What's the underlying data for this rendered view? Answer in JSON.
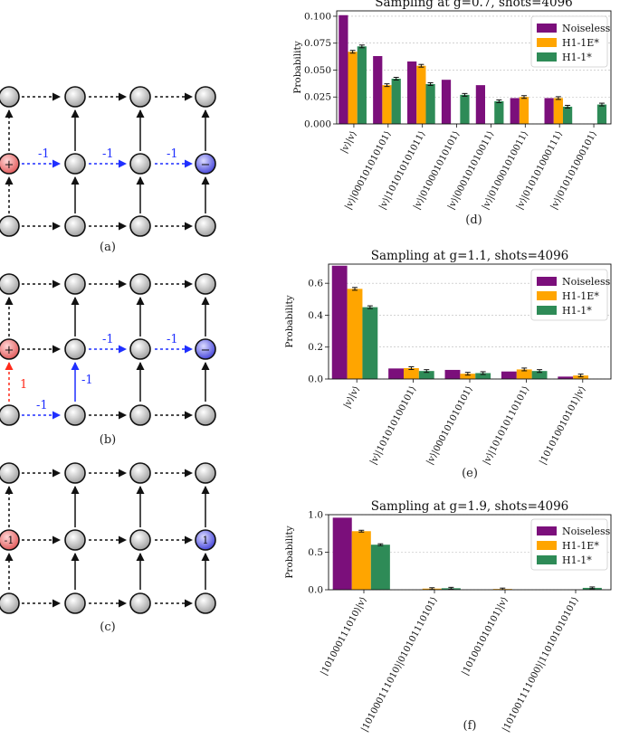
{
  "colors": {
    "noiseless": "#7b0f7b",
    "h1_1e": "#ffa500",
    "h1_1": "#2e8b57",
    "blue_link": "#1f2fff",
    "red_link": "#ff2a1a"
  },
  "diagrams": [
    {
      "caption": "(a)",
      "plus_label": "+",
      "minus_label": "−",
      "link_labels": [
        "-1",
        "-1",
        "-1"
      ]
    },
    {
      "caption": "(b)",
      "plus_label": "+",
      "minus_label": "−",
      "link_labels": [
        "-1",
        "-1",
        "-1",
        "-1",
        "1"
      ]
    },
    {
      "caption": "(c)",
      "left_label": "-1",
      "right_label": "1"
    }
  ],
  "legend": [
    "Noiseless",
    "H1-1E*",
    "H1-1*"
  ],
  "chart_data": [
    {
      "type": "bar",
      "caption": "(d)",
      "title": "Sampling at g=0.7, shots=4096",
      "ylabel": "Probability",
      "ylim": [
        0,
        0.105
      ],
      "yticks": [
        "0.000",
        "0.025",
        "0.050",
        "0.075",
        "0.100"
      ],
      "ytick_values": [
        0,
        0.025,
        0.05,
        0.075,
        0.1
      ],
      "categories": [
        "|v⟩|v⟩",
        "|v⟩|000101010101⟩",
        "|v⟩|101010101011⟩",
        "|v⟩|010001010101⟩",
        "|v⟩|000101010011⟩",
        "|v⟩|010001010011⟩",
        "|v⟩|010101000111⟩",
        "|v⟩|010101000101⟩"
      ],
      "series": [
        {
          "name": "Noiseless",
          "values": [
            0.101,
            0.063,
            0.058,
            0.041,
            0.036,
            0.024,
            0.024,
            0
          ]
        },
        {
          "name": "H1-1E*",
          "values": [
            0.067,
            0.036,
            0.054,
            0,
            0,
            0.025,
            0.024,
            0
          ]
        },
        {
          "name": "H1-1*",
          "values": [
            0.072,
            0.042,
            0.037,
            0.027,
            0.021,
            0,
            0.016,
            0.018
          ]
        }
      ]
    },
    {
      "type": "bar",
      "caption": "(e)",
      "title": "Sampling at g=1.1, shots=4096",
      "ylabel": "Probability",
      "ylim": [
        0,
        0.72
      ],
      "yticks": [
        "0.0",
        "0.2",
        "0.4",
        "0.6"
      ],
      "ytick_values": [
        0,
        0.2,
        0.4,
        0.6
      ],
      "categories": [
        "|v⟩|v⟩",
        "|v⟩|101010100101⟩",
        "|v⟩|000101010101⟩",
        "|v⟩|101010110101⟩",
        "|101010010101⟩|v⟩"
      ],
      "series": [
        {
          "name": "Noiseless",
          "values": [
            0.71,
            0.066,
            0.057,
            0.047,
            0.015
          ]
        },
        {
          "name": "H1-1E*",
          "values": [
            0.565,
            0.068,
            0.033,
            0.06,
            0.022
          ]
        },
        {
          "name": "H1-1*",
          "values": [
            0.45,
            0.05,
            0.037,
            0.05,
            0
          ]
        }
      ]
    },
    {
      "type": "bar",
      "caption": "(f)",
      "title": "Sampling at g=1.9, shots=4096",
      "ylabel": "Probability",
      "ylim": [
        0,
        1.0
      ],
      "yticks": [
        "0.0",
        "0.5",
        "1.0"
      ],
      "ytick_values": [
        0,
        0.5,
        1.0
      ],
      "categories": [
        "|101000111010⟩|v⟩",
        "|101000111010⟩|010101110101⟩",
        "|101001010101⟩|v⟩",
        "|101001111000⟩|110101010101⟩"
      ],
      "series": [
        {
          "name": "Noiseless",
          "values": [
            0.96,
            0,
            0,
            0
          ]
        },
        {
          "name": "H1-1E*",
          "values": [
            0.78,
            0.015,
            0.01,
            0
          ]
        },
        {
          "name": "H1-1*",
          "values": [
            0.6,
            0.02,
            0,
            0.025
          ]
        }
      ]
    }
  ]
}
